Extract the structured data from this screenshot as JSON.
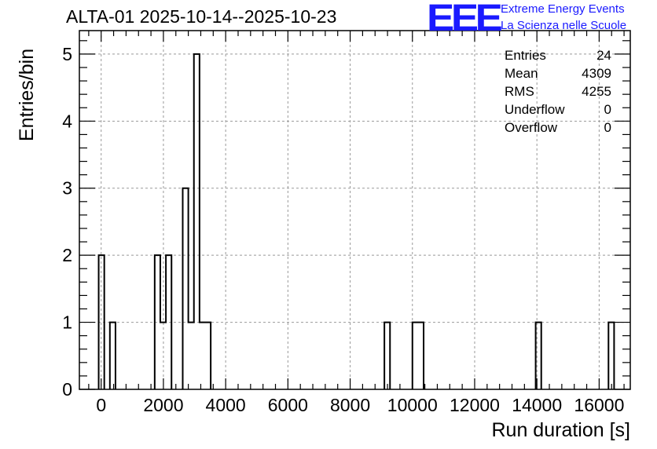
{
  "header": {
    "title": "ALTA-01 2025-10-14--2025-10-23",
    "logo_text": "EEE",
    "logo_line1": "Extreme Energy Events",
    "logo_line2": "La Scienza nelle Scuole"
  },
  "stats": {
    "rows": [
      {
        "label": "Entries",
        "value": "24"
      },
      {
        "label": "Mean",
        "value": "4309"
      },
      {
        "label": "RMS",
        "value": "4255"
      },
      {
        "label": "Underflow",
        "value": "0"
      },
      {
        "label": "Overflow",
        "value": "0"
      }
    ]
  },
  "colors": {
    "line": "#000000",
    "grid": "#999999",
    "logo": "#1a1aff"
  },
  "chart_data": {
    "type": "bar",
    "xlabel": "Run duration [s]",
    "ylabel": "Entries/bin",
    "xlim": [
      -700,
      17000
    ],
    "ylim": [
      0,
      5.35
    ],
    "bin_width": 180,
    "grid": true,
    "xticks": [
      0,
      2000,
      4000,
      6000,
      8000,
      10000,
      12000,
      14000,
      16000
    ],
    "yticks": [
      0,
      1,
      2,
      3,
      4,
      5
    ],
    "bins": [
      {
        "x": -80,
        "count": 2
      },
      {
        "x": 280,
        "count": 1
      },
      {
        "x": 1720,
        "count": 2
      },
      {
        "x": 1900,
        "count": 1
      },
      {
        "x": 2080,
        "count": 2
      },
      {
        "x": 2620,
        "count": 3
      },
      {
        "x": 2800,
        "count": 1
      },
      {
        "x": 2980,
        "count": 5
      },
      {
        "x": 3160,
        "count": 1
      },
      {
        "x": 3340,
        "count": 1
      },
      {
        "x": 9100,
        "count": 1
      },
      {
        "x": 10000,
        "count": 1
      },
      {
        "x": 10180,
        "count": 1
      },
      {
        "x": 13960,
        "count": 1
      },
      {
        "x": 16300,
        "count": 1
      }
    ]
  }
}
